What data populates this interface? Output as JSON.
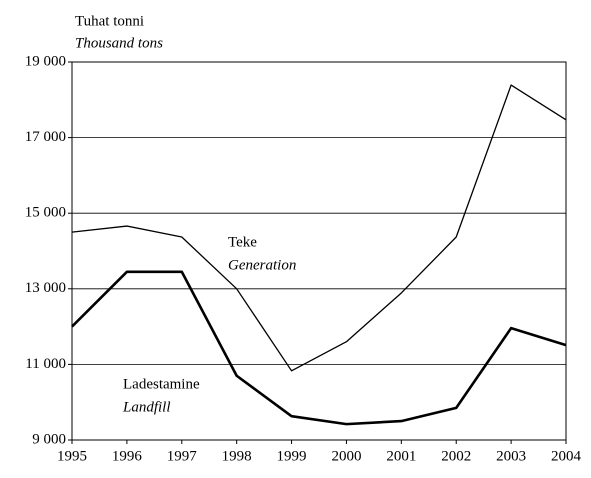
{
  "chart_data": {
    "type": "line",
    "y_label": "Tuhat tonni",
    "y_label_en": "Thousand tons",
    "x": [
      1995,
      1996,
      1997,
      1998,
      1999,
      2000,
      2001,
      2002,
      2003,
      2004
    ],
    "xlim": [
      1995,
      2004
    ],
    "xticks": [
      1995,
      1996,
      1997,
      1998,
      1999,
      2000,
      2001,
      2002,
      2003,
      2004
    ],
    "ylim": [
      9000,
      19000
    ],
    "yticks": [
      {
        "value": 9000,
        "label": "9 000"
      },
      {
        "value": 11000,
        "label": "11 000"
      },
      {
        "value": 13000,
        "label": "13 000"
      },
      {
        "value": 15000,
        "label": "15 000"
      },
      {
        "value": 17000,
        "label": "17 000"
      },
      {
        "value": 19000,
        "label": "19 000"
      }
    ],
    "grid": true,
    "series": [
      {
        "name": "Teke",
        "name_en": "Generation",
        "color": "#000000",
        "width": 1.3,
        "values": [
          14500,
          14660,
          14370,
          13000,
          10830,
          11600,
          12890,
          14370,
          18390,
          17470
        ]
      },
      {
        "name": "Ladestamine",
        "name_en": "Landfill",
        "color": "#000000",
        "width": 2.6,
        "values": [
          12000,
          13450,
          13450,
          10700,
          9630,
          9420,
          9500,
          9850,
          11960,
          11510
        ]
      }
    ]
  }
}
